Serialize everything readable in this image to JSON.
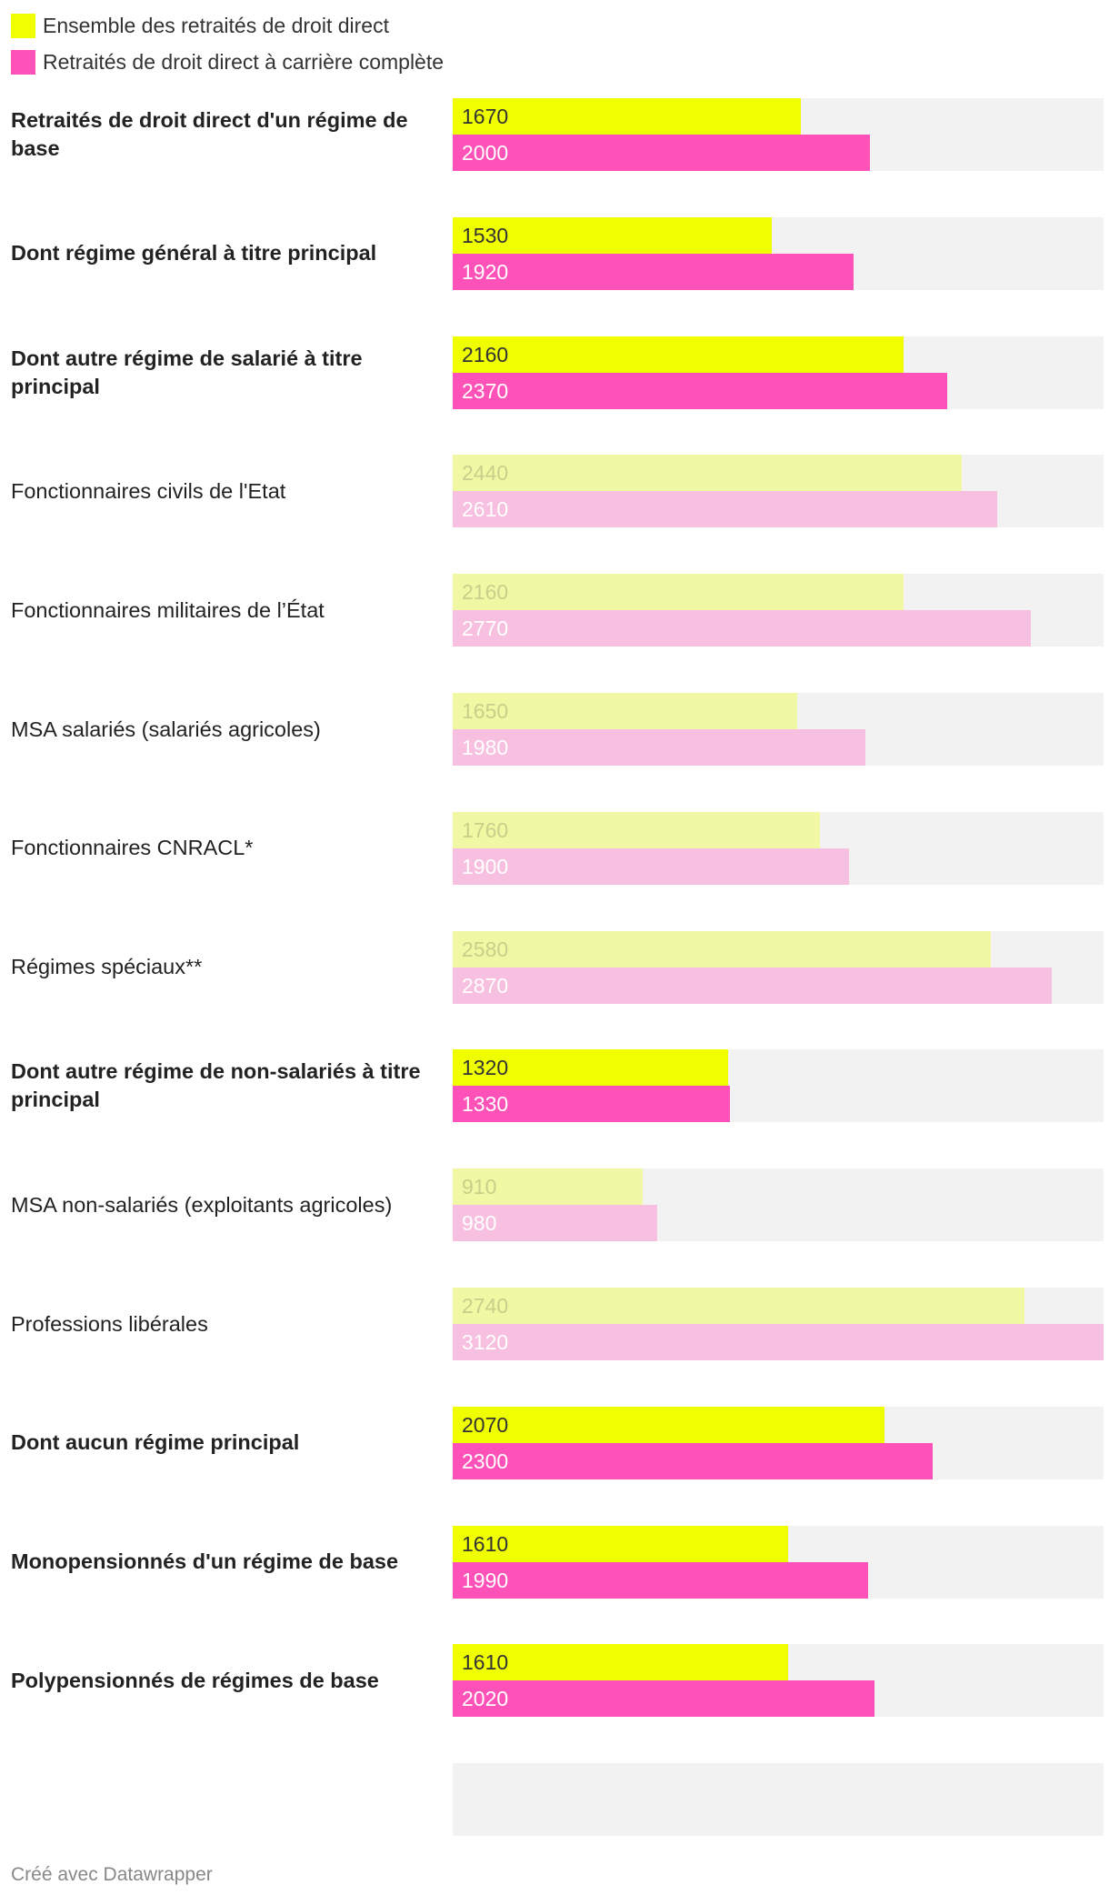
{
  "legend": {
    "items": [
      {
        "label": "Ensemble des retraités de droit direct",
        "color": "#f0ff00"
      },
      {
        "label": "Retraités de droit direct à carrière complète",
        "color": "#ff52b8"
      }
    ]
  },
  "chart_data": {
    "type": "bar",
    "orientation": "horizontal",
    "xlim": [
      0,
      3120
    ],
    "categories": [
      "Retraités de droit direct d'un régime de base",
      "Dont régime général à titre principal",
      "Dont autre régime de salarié à titre principal",
      "Fonctionnaires civils de l'Etat",
      "Fonctionnaires militaires de l’État",
      "MSA salariés (salariés agricoles)",
      "Fonctionnaires CNRACL*",
      "Régimes spéciaux**",
      "Dont autre régime de non-salariés à titre principal",
      "MSA non-salariés (exploitants agricoles)",
      "Professions libérales",
      "Dont aucun régime principal",
      "Monopensionnés d'un régime de base",
      "Polypensionnés de régimes de base",
      ""
    ],
    "emphasis": [
      true,
      true,
      true,
      false,
      false,
      false,
      false,
      false,
      true,
      false,
      false,
      true,
      true,
      true,
      false
    ],
    "series": [
      {
        "name": "Ensemble des retraités de droit direct",
        "color": "#f0ff00",
        "muted_color": "#f1f8a4",
        "values": [
          1670,
          1530,
          2160,
          2440,
          2160,
          1650,
          1760,
          2580,
          1320,
          910,
          2740,
          2070,
          1610,
          1610,
          null
        ]
      },
      {
        "name": "Retraités de droit direct à carrière complète",
        "color": "#ff52b8",
        "muted_color": "#f7c0e0",
        "values": [
          2000,
          1920,
          2370,
          2610,
          2770,
          1980,
          1900,
          2870,
          1330,
          980,
          3120,
          2300,
          1990,
          2020,
          null
        ]
      }
    ]
  },
  "footer": {
    "text": "Créé avec Datawrapper"
  }
}
